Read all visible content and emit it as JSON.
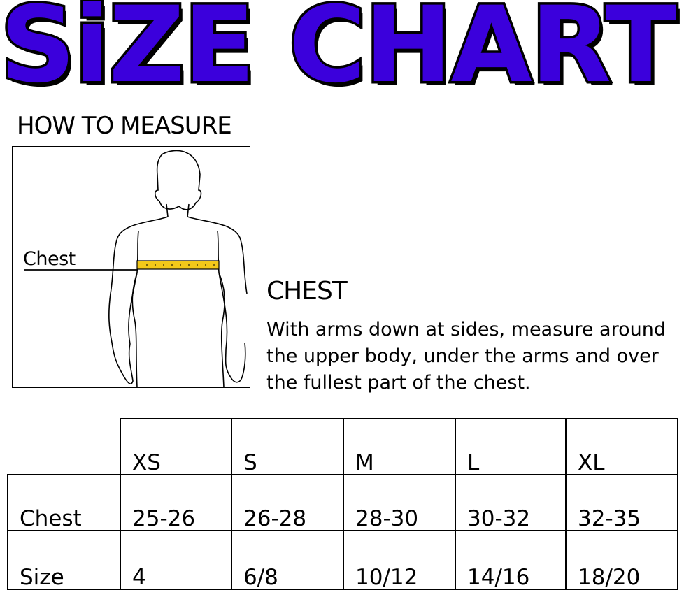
{
  "title": "SiZE CHART",
  "how_to_measure": "HOW TO MEASURE",
  "figure": {
    "label": "Chest",
    "tape_color": "#f2c81a"
  },
  "instruction": {
    "heading": "CHEST",
    "text": "With arms down at sides, measure around the upper body, under the arms and over the fullest part of the chest."
  },
  "colors": {
    "title_fill": "#3b00dc",
    "title_outline": "#000000"
  },
  "table": {
    "columns": [
      "XS",
      "S",
      "M",
      "L",
      "XL"
    ],
    "rows": [
      {
        "label": "Chest",
        "values": [
          "25-26",
          "26-28",
          "28-30",
          "30-32",
          "32-35"
        ]
      },
      {
        "label": "Size",
        "values": [
          "4",
          "6/8",
          "10/12",
          "14/16",
          "18/20"
        ]
      }
    ]
  }
}
